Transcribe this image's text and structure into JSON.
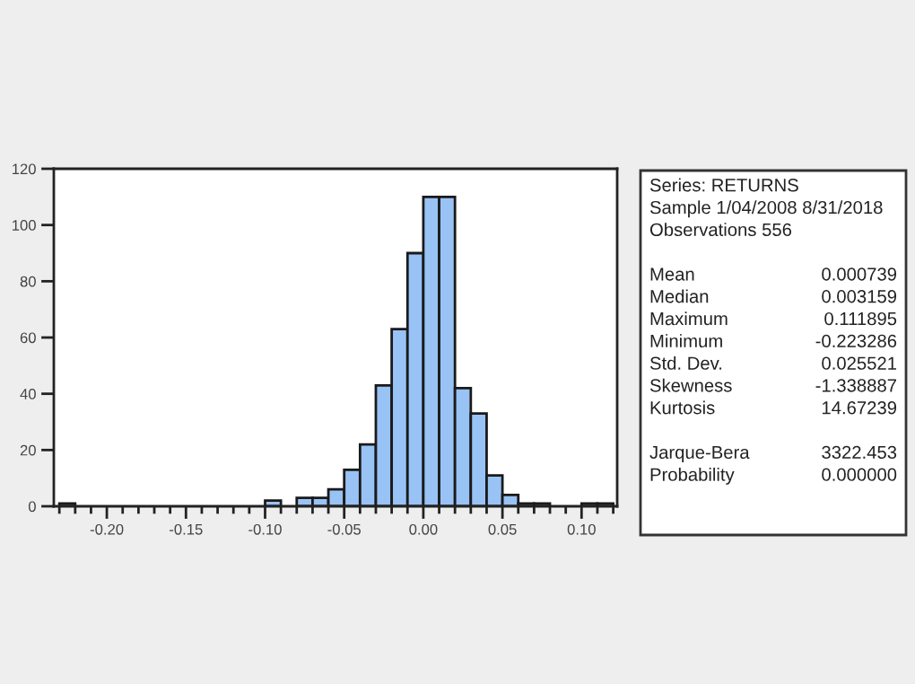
{
  "chart_data": {
    "type": "histogram",
    "bins": [
      -0.23,
      -0.22,
      -0.21,
      -0.2,
      -0.19,
      -0.18,
      -0.17,
      -0.16,
      -0.15,
      -0.14,
      -0.13,
      -0.12,
      -0.11,
      -0.1,
      -0.09,
      -0.08,
      -0.07,
      -0.06,
      -0.05,
      -0.04,
      -0.03,
      -0.02,
      -0.01,
      0.0,
      0.01,
      0.02,
      0.03,
      0.04,
      0.05,
      0.06,
      0.07,
      0.08,
      0.09,
      0.1,
      0.11,
      0.12
    ],
    "values": [
      1,
      0,
      0,
      0,
      0,
      0,
      0,
      0,
      0,
      0,
      0,
      0,
      0,
      2,
      0,
      3,
      3,
      6,
      13,
      22,
      43,
      63,
      90,
      110,
      110,
      42,
      33,
      11,
      4,
      1,
      1,
      0,
      0,
      1,
      1
    ],
    "color": "#99c2f5",
    "xlim": [
      -0.2335,
      0.1225
    ],
    "xticks": [
      {
        "value": -0.2,
        "label": "-0.20"
      },
      {
        "value": -0.15,
        "label": "-0.15"
      },
      {
        "value": -0.1,
        "label": "-0.10"
      },
      {
        "value": -0.05,
        "label": "-0.05"
      },
      {
        "value": 0.0,
        "label": "0.00"
      },
      {
        "value": 0.05,
        "label": "0.05"
      },
      {
        "value": 0.1,
        "label": "0.10"
      }
    ],
    "ylim": [
      0,
      120
    ],
    "yticks": [
      0,
      20,
      40,
      60,
      80,
      100,
      120
    ],
    "grid": false,
    "annotations": [
      "Series: RETURNS",
      "Sample 1/04/2008 8/31/2018",
      "Observations 556",
      "Mean\t0.000739",
      "Median\t0.003159",
      "Maximum\t0.111895",
      "Minimum\t-0.223286",
      "Std. Dev.\t0.025521",
      "Skewness\t-1.338887",
      "Kurtosis\t14.67239",
      "Jarque-Bera\t3322.453",
      "Probability\t0.000000"
    ]
  }
}
